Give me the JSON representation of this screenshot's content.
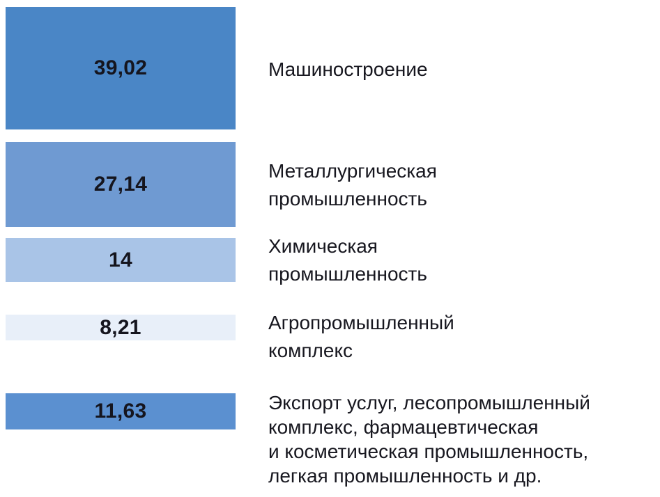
{
  "chart_data": {
    "type": "bar",
    "title": "",
    "legend": "off",
    "grid": "off",
    "orientation": "vertical-height-encoded-list",
    "categories": [
      "Машиностроение",
      "Металлургическая промышленность",
      "Химическая промышленность",
      "Агропромышленный комплекс",
      "Экспорт услуг, лесопромышленный комплекс, фармацевтическая и косметическая промышленность, легкая промышленность и др."
    ],
    "values": [
      39.02,
      27.14,
      14,
      8.21,
      11.63
    ],
    "rows": [
      {
        "label": "Машиностроение",
        "value": 39.02,
        "value_label": "39,02",
        "color": "#4a86c6"
      },
      {
        "label": "Металлургическая\nпромышленность",
        "value": 27.14,
        "value_label": "27,14",
        "color": "#6f9ad2"
      },
      {
        "label": "Химическая\nпромышленность",
        "value": 14,
        "value_label": "14",
        "color": "#a9c4e7"
      },
      {
        "label": "Агропромышленный\nкомплекс",
        "value": 8.21,
        "value_label": "8,21",
        "color": "#e8eff9"
      },
      {
        "label": "Экспорт услуг, лесопромышленный\nкомплекс, фармацевтическая\nи косметическая промышленность,\nлегкая промышленность и др.",
        "value": 11.63,
        "value_label": "11,63",
        "color": "#5b90d0"
      }
    ],
    "text_color": "#17171f",
    "background_color": "#ffffff"
  }
}
